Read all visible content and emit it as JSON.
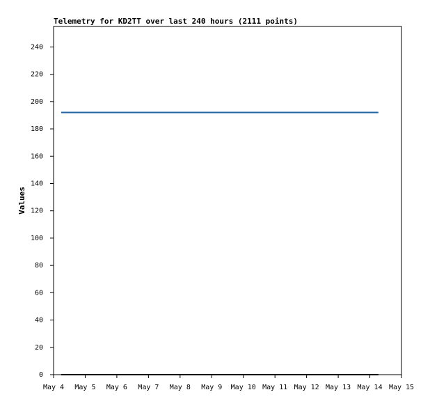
{
  "chart_data": {
    "type": "line",
    "title": "Telemetry for KD2TT over last 240 hours (2111 points)",
    "y_label": "Values",
    "x": [
      4.24,
      14.27
    ],
    "series": [
      {
        "color": "#1f63a3",
        "values": [
          192,
          192
        ]
      },
      {
        "color": "#000000",
        "values": [
          0,
          0
        ]
      }
    ],
    "xlim": [
      4,
      15
    ],
    "xticks": [
      {
        "value": 4,
        "label": "May 4"
      },
      {
        "value": 5,
        "label": "May 5"
      },
      {
        "value": 6,
        "label": "May 6"
      },
      {
        "value": 7,
        "label": "May 7"
      },
      {
        "value": 8,
        "label": "May 8"
      },
      {
        "value": 9,
        "label": "May 9"
      },
      {
        "value": 10,
        "label": "May 10"
      },
      {
        "value": 11,
        "label": "May 11"
      },
      {
        "value": 12,
        "label": "May 12"
      },
      {
        "value": 13,
        "label": "May 13"
      },
      {
        "value": 14,
        "label": "May 14"
      },
      {
        "value": 15,
        "label": "May 15"
      }
    ],
    "ylim": [
      0,
      255
    ],
    "yticks": [
      0,
      20,
      40,
      60,
      80,
      100,
      120,
      140,
      160,
      180,
      200,
      220,
      240
    ]
  }
}
